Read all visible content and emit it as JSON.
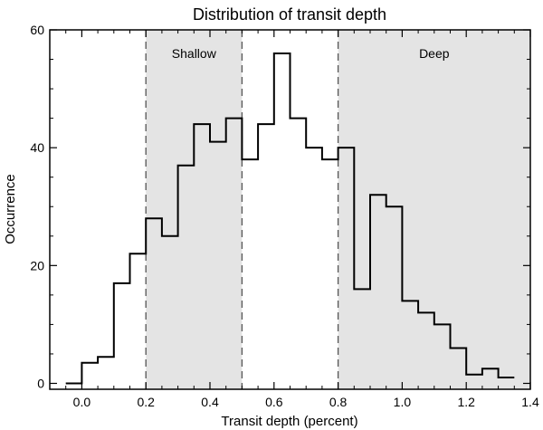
{
  "chart_data": {
    "type": "histogram",
    "title": "Distribution of transit depth",
    "xlabel": "Transit depth (percent)",
    "ylabel": "Occurrence",
    "xlim": [
      -0.1,
      1.4
    ],
    "ylim": [
      -1,
      60
    ],
    "xticks": [
      0.0,
      0.2,
      0.4,
      0.6,
      0.8,
      1.0,
      1.2,
      1.4
    ],
    "xtick_labels": [
      "0.0",
      "0.2",
      "0.4",
      "0.6",
      "0.8",
      "1.0",
      "1.2",
      "1.4"
    ],
    "yticks": [
      0,
      20,
      40,
      60
    ],
    "ytick_labels": [
      "0",
      "20",
      "40",
      "60"
    ],
    "bin_width": 0.05,
    "bin_starts": [
      -0.05,
      0.0,
      0.05,
      0.1,
      0.15,
      0.2,
      0.25,
      0.3,
      0.35,
      0.4,
      0.45,
      0.5,
      0.55,
      0.6,
      0.65,
      0.7,
      0.75,
      0.8,
      0.85,
      0.9,
      0.95,
      1.0,
      1.05,
      1.1,
      1.15,
      1.2,
      1.25,
      1.3
    ],
    "values": [
      0,
      3.5,
      4.5,
      17,
      22,
      28,
      25,
      37,
      44,
      41,
      45,
      38,
      44,
      56,
      45,
      40,
      38,
      40,
      16,
      32,
      30,
      14,
      12,
      10,
      6,
      1.5,
      2.5,
      1
    ],
    "regions": [
      {
        "label": "Shallow",
        "x_range": [
          0.2,
          0.5
        ],
        "color": "#e4e4e4"
      },
      {
        "label": "Deep",
        "x_range": [
          0.8,
          1.4
        ],
        "color": "#e4e4e4"
      }
    ],
    "grid": false,
    "line_color": "#000000"
  }
}
